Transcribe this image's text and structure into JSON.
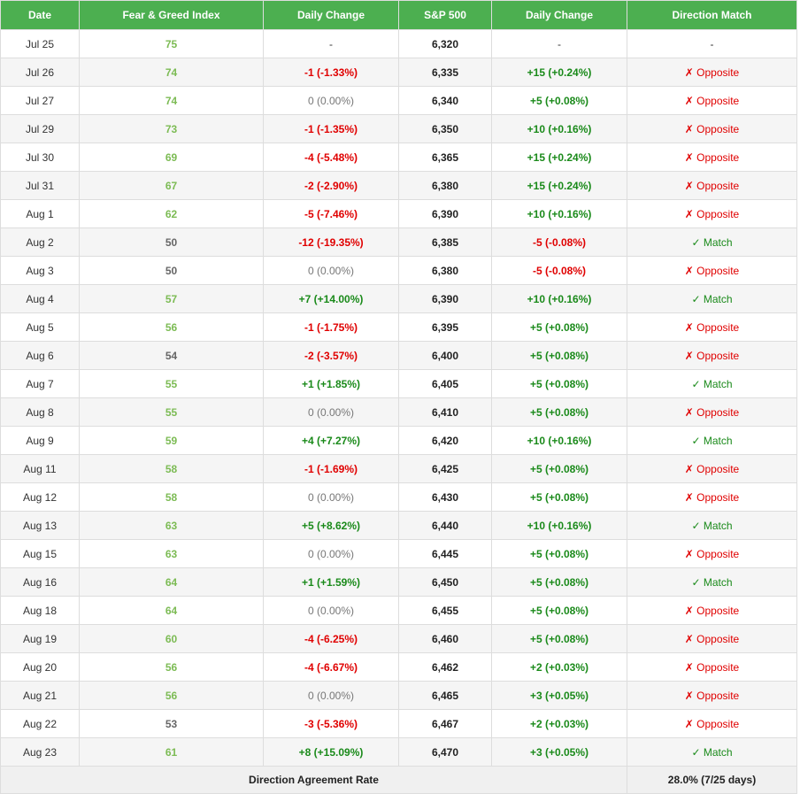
{
  "table": {
    "headers": [
      "Date",
      "Fear & Greed Index",
      "Daily Change",
      "S&P 500",
      "Daily Change",
      "Direction Match"
    ],
    "rows": [
      {
        "date": "Jul 25",
        "fg": "75",
        "fg_class": "greed",
        "fg_change": "-",
        "fg_change_class": "none",
        "sp": "6,320",
        "sp_change": "-",
        "sp_change_class": "none",
        "direction": "-",
        "direction_class": "none"
      },
      {
        "date": "Jul 26",
        "fg": "74",
        "fg_class": "greed",
        "fg_change": "-1 (-1.33%)",
        "fg_change_class": "neg",
        "sp": "6,335",
        "sp_change": "+15 (+0.24%)",
        "sp_change_class": "pos",
        "direction": "✗ Opposite",
        "direction_class": "opp"
      },
      {
        "date": "Jul 27",
        "fg": "74",
        "fg_class": "greed",
        "fg_change": "0 (0.00%)",
        "fg_change_class": "zero",
        "sp": "6,340",
        "sp_change": "+5 (+0.08%)",
        "sp_change_class": "pos",
        "direction": "✗ Opposite",
        "direction_class": "opp"
      },
      {
        "date": "Jul 29",
        "fg": "73",
        "fg_class": "greed",
        "fg_change": "-1 (-1.35%)",
        "fg_change_class": "neg",
        "sp": "6,350",
        "sp_change": "+10 (+0.16%)",
        "sp_change_class": "pos",
        "direction": "✗ Opposite",
        "direction_class": "opp"
      },
      {
        "date": "Jul 30",
        "fg": "69",
        "fg_class": "greed",
        "fg_change": "-4 (-5.48%)",
        "fg_change_class": "neg",
        "sp": "6,365",
        "sp_change": "+15 (+0.24%)",
        "sp_change_class": "pos",
        "direction": "✗ Opposite",
        "direction_class": "opp"
      },
      {
        "date": "Jul 31",
        "fg": "67",
        "fg_class": "greed",
        "fg_change": "-2 (-2.90%)",
        "fg_change_class": "neg",
        "sp": "6,380",
        "sp_change": "+15 (+0.24%)",
        "sp_change_class": "pos",
        "direction": "✗ Opposite",
        "direction_class": "opp"
      },
      {
        "date": "Aug 1",
        "fg": "62",
        "fg_class": "greed",
        "fg_change": "-5 (-7.46%)",
        "fg_change_class": "neg",
        "sp": "6,390",
        "sp_change": "+10 (+0.16%)",
        "sp_change_class": "pos",
        "direction": "✗ Opposite",
        "direction_class": "opp"
      },
      {
        "date": "Aug 2",
        "fg": "50",
        "fg_class": "neutral",
        "fg_change": "-12 (-19.35%)",
        "fg_change_class": "neg",
        "sp": "6,385",
        "sp_change": "-5 (-0.08%)",
        "sp_change_class": "neg",
        "direction": "✓ Match",
        "direction_class": "match"
      },
      {
        "date": "Aug 3",
        "fg": "50",
        "fg_class": "neutral",
        "fg_change": "0 (0.00%)",
        "fg_change_class": "zero",
        "sp": "6,380",
        "sp_change": "-5 (-0.08%)",
        "sp_change_class": "neg",
        "direction": "✗ Opposite",
        "direction_class": "opp"
      },
      {
        "date": "Aug 4",
        "fg": "57",
        "fg_class": "greed",
        "fg_change": "+7 (+14.00%)",
        "fg_change_class": "pos",
        "sp": "6,390",
        "sp_change": "+10 (+0.16%)",
        "sp_change_class": "pos",
        "direction": "✓ Match",
        "direction_class": "match"
      },
      {
        "date": "Aug 5",
        "fg": "56",
        "fg_class": "greed",
        "fg_change": "-1 (-1.75%)",
        "fg_change_class": "neg",
        "sp": "6,395",
        "sp_change": "+5 (+0.08%)",
        "sp_change_class": "pos",
        "direction": "✗ Opposite",
        "direction_class": "opp"
      },
      {
        "date": "Aug 6",
        "fg": "54",
        "fg_class": "neutral",
        "fg_change": "-2 (-3.57%)",
        "fg_change_class": "neg",
        "sp": "6,400",
        "sp_change": "+5 (+0.08%)",
        "sp_change_class": "pos",
        "direction": "✗ Opposite",
        "direction_class": "opp"
      },
      {
        "date": "Aug 7",
        "fg": "55",
        "fg_class": "greed",
        "fg_change": "+1 (+1.85%)",
        "fg_change_class": "pos",
        "sp": "6,405",
        "sp_change": "+5 (+0.08%)",
        "sp_change_class": "pos",
        "direction": "✓ Match",
        "direction_class": "match"
      },
      {
        "date": "Aug 8",
        "fg": "55",
        "fg_class": "greed",
        "fg_change": "0 (0.00%)",
        "fg_change_class": "zero",
        "sp": "6,410",
        "sp_change": "+5 (+0.08%)",
        "sp_change_class": "pos",
        "direction": "✗ Opposite",
        "direction_class": "opp"
      },
      {
        "date": "Aug 9",
        "fg": "59",
        "fg_class": "greed",
        "fg_change": "+4 (+7.27%)",
        "fg_change_class": "pos",
        "sp": "6,420",
        "sp_change": "+10 (+0.16%)",
        "sp_change_class": "pos",
        "direction": "✓ Match",
        "direction_class": "match"
      },
      {
        "date": "Aug 11",
        "fg": "58",
        "fg_class": "greed",
        "fg_change": "-1 (-1.69%)",
        "fg_change_class": "neg",
        "sp": "6,425",
        "sp_change": "+5 (+0.08%)",
        "sp_change_class": "pos",
        "direction": "✗ Opposite",
        "direction_class": "opp"
      },
      {
        "date": "Aug 12",
        "fg": "58",
        "fg_class": "greed",
        "fg_change": "0 (0.00%)",
        "fg_change_class": "zero",
        "sp": "6,430",
        "sp_change": "+5 (+0.08%)",
        "sp_change_class": "pos",
        "direction": "✗ Opposite",
        "direction_class": "opp"
      },
      {
        "date": "Aug 13",
        "fg": "63",
        "fg_class": "greed",
        "fg_change": "+5 (+8.62%)",
        "fg_change_class": "pos",
        "sp": "6,440",
        "sp_change": "+10 (+0.16%)",
        "sp_change_class": "pos",
        "direction": "✓ Match",
        "direction_class": "match"
      },
      {
        "date": "Aug 15",
        "fg": "63",
        "fg_class": "greed",
        "fg_change": "0 (0.00%)",
        "fg_change_class": "zero",
        "sp": "6,445",
        "sp_change": "+5 (+0.08%)",
        "sp_change_class": "pos",
        "direction": "✗ Opposite",
        "direction_class": "opp"
      },
      {
        "date": "Aug 16",
        "fg": "64",
        "fg_class": "greed",
        "fg_change": "+1 (+1.59%)",
        "fg_change_class": "pos",
        "sp": "6,450",
        "sp_change": "+5 (+0.08%)",
        "sp_change_class": "pos",
        "direction": "✓ Match",
        "direction_class": "match"
      },
      {
        "date": "Aug 18",
        "fg": "64",
        "fg_class": "greed",
        "fg_change": "0 (0.00%)",
        "fg_change_class": "zero",
        "sp": "6,455",
        "sp_change": "+5 (+0.08%)",
        "sp_change_class": "pos",
        "direction": "✗ Opposite",
        "direction_class": "opp"
      },
      {
        "date": "Aug 19",
        "fg": "60",
        "fg_class": "greed",
        "fg_change": "-4 (-6.25%)",
        "fg_change_class": "neg",
        "sp": "6,460",
        "sp_change": "+5 (+0.08%)",
        "sp_change_class": "pos",
        "direction": "✗ Opposite",
        "direction_class": "opp"
      },
      {
        "date": "Aug 20",
        "fg": "56",
        "fg_class": "greed",
        "fg_change": "-4 (-6.67%)",
        "fg_change_class": "neg",
        "sp": "6,462",
        "sp_change": "+2 (+0.03%)",
        "sp_change_class": "pos",
        "direction": "✗ Opposite",
        "direction_class": "opp"
      },
      {
        "date": "Aug 21",
        "fg": "56",
        "fg_class": "greed",
        "fg_change": "0 (0.00%)",
        "fg_change_class": "zero",
        "sp": "6,465",
        "sp_change": "+3 (+0.05%)",
        "sp_change_class": "pos",
        "direction": "✗ Opposite",
        "direction_class": "opp"
      },
      {
        "date": "Aug 22",
        "fg": "53",
        "fg_class": "neutral",
        "fg_change": "-3 (-5.36%)",
        "fg_change_class": "neg",
        "sp": "6,467",
        "sp_change": "+2 (+0.03%)",
        "sp_change_class": "pos",
        "direction": "✗ Opposite",
        "direction_class": "opp"
      },
      {
        "date": "Aug 23",
        "fg": "61",
        "fg_class": "greed",
        "fg_change": "+8 (+15.09%)",
        "fg_change_class": "pos",
        "sp": "6,470",
        "sp_change": "+3 (+0.05%)",
        "sp_change_class": "pos",
        "direction": "✓ Match",
        "direction_class": "match"
      }
    ],
    "footer": {
      "label": "Direction Agreement Rate",
      "value": "28.0% (7/25 days)"
    }
  },
  "colors": {
    "header_bg": "#4caf50",
    "greed_value": "#7cbb54",
    "neutral_value": "#666666",
    "positive": "#1a8a1a",
    "negative": "#e00000",
    "zero": "#777777"
  }
}
